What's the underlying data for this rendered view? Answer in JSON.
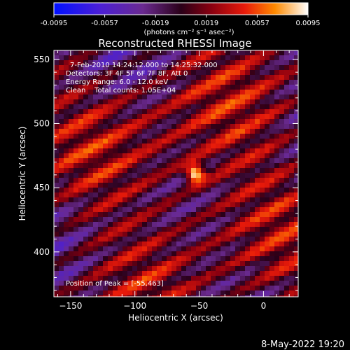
{
  "colorbar": {
    "ticks": [
      "-0.0095",
      "-0.0057",
      "-0.0019",
      "0.0019",
      "0.0057",
      "0.0095"
    ],
    "units": "(photons cm⁻² s⁻¹ asec⁻²)",
    "range": [
      -0.0095,
      0.0095
    ]
  },
  "image": {
    "title": "Reconstructed RHESSI Image",
    "info_lines": [
      "7-Feb-2010 14:24:12.000 to 14:25:32.000",
      "Detectors: 3F 4F 5F 6F 7F 8F, Att 0",
      "Energy Range: 6.0 - 12.0 keV",
      "Clean    Total counts: 1.05E+04"
    ],
    "peak_label": "Position of Peak = [-55,463]",
    "peak": {
      "x": -55,
      "y": 463
    }
  },
  "axes": {
    "xlabel": "Heliocentric X (arcsec)",
    "ylabel": "Heliocentric Y (arcsec)",
    "xlim": [
      -163,
      27
    ],
    "ylim": [
      365,
      557
    ],
    "xticks": [
      {
        "v": -150,
        "label": "−150"
      },
      {
        "v": -100,
        "label": "−100"
      },
      {
        "v": -50,
        "label": "−50"
      },
      {
        "v": 0,
        "label": "0"
      }
    ],
    "yticks": [
      {
        "v": 400,
        "label": "400"
      },
      {
        "v": 450,
        "label": "450"
      },
      {
        "v": 500,
        "label": "500"
      },
      {
        "v": 550,
        "label": "550"
      }
    ]
  },
  "footer": {
    "timestamp": "8-May-2022 19:20"
  },
  "colors": {
    "background": "#000000",
    "foreground": "#ffffff"
  }
}
